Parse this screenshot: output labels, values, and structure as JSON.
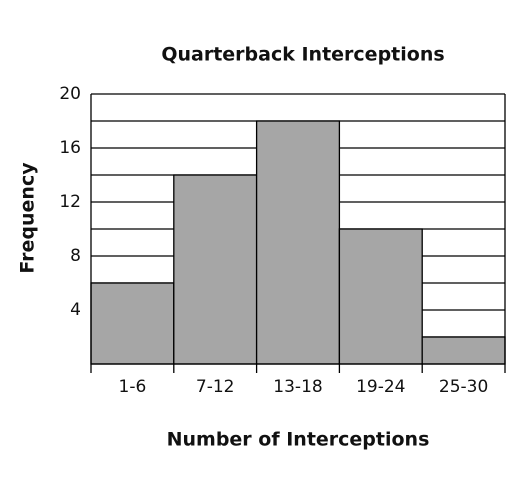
{
  "chart_data": {
    "type": "bar",
    "title": "Quarterback Interceptions",
    "x_label": "Number of Interceptions",
    "y_label": "Frequency",
    "categories": [
      "1-6",
      "7-12",
      "13-18",
      "19-24",
      "25-30"
    ],
    "values": [
      6,
      14,
      18,
      10,
      2
    ],
    "color": "#a6a6a6",
    "ylim": [
      0,
      20
    ],
    "yticks": [
      4,
      8,
      12,
      16,
      20
    ],
    "minor_yticks": [
      2,
      6,
      10,
      14,
      18
    ],
    "grid": true
  }
}
